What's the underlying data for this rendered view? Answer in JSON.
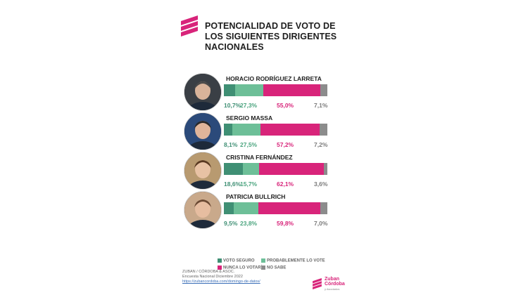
{
  "title_lines": [
    "POTENCIALIDAD DE VOTO DE",
    "LOS SIGUIENTES DIRIGENTES",
    "NACIONALES"
  ],
  "colors": {
    "seguro": "#3f8f74",
    "probable": "#6dbf98",
    "nunca": "#d8247a",
    "no_sabe": "#8c8c8c"
  },
  "chart_data": {
    "type": "bar",
    "orientation": "horizontal-stacked",
    "title": "POTENCIALIDAD DE VOTO DE LOS SIGUIENTES DIRIGENTES NACIONALES",
    "categories": [
      "HORACIO RODRÍGUEZ LARRETA",
      "SERGIO MASSA",
      "CRISTINA FERNÁNDEZ",
      "PATRICIA BULLRICH"
    ],
    "series": [
      {
        "name": "VOTO SEGURO",
        "values": [
          10.7,
          8.1,
          18.6,
          9.5
        ]
      },
      {
        "name": "PROBABLEMENTE LO VOTE",
        "values": [
          27.3,
          27.5,
          15.7,
          23.8
        ]
      },
      {
        "name": "NUNCA LO VOTARÍA",
        "values": [
          55.0,
          57.2,
          62.1,
          59.8
        ]
      },
      {
        "name": "NO SABE",
        "values": [
          7.1,
          7.2,
          3.6,
          7.0
        ]
      }
    ],
    "labels": [
      [
        "10,7%",
        "27,3%",
        "55,0%",
        "7,1%"
      ],
      [
        "8,1%",
        "27,5%",
        "57,2%",
        "7,2%"
      ],
      [
        "18,6%",
        "15,7%",
        "62,1%",
        "3,6%"
      ],
      [
        "9,5%",
        "23,8%",
        "59,8%",
        "7,0%"
      ]
    ],
    "legend_position": "bottom"
  },
  "legend": [
    "VOTO SEGURO",
    "PROBABLEMENTE LO VOTE",
    "NUNCA LO VOTARÍA",
    "NO SABE"
  ],
  "source": {
    "line1": "ZUBAN / CÓRDOBA & ASOC.",
    "line2": "Encuesta Nacional Diciembre 2022",
    "link": "https://zubancordoba.com/domingo-de-datos/"
  },
  "brand": {
    "name_line1": "Zuban",
    "name_line2": "Córdoba",
    "sub": "y Asociados"
  }
}
